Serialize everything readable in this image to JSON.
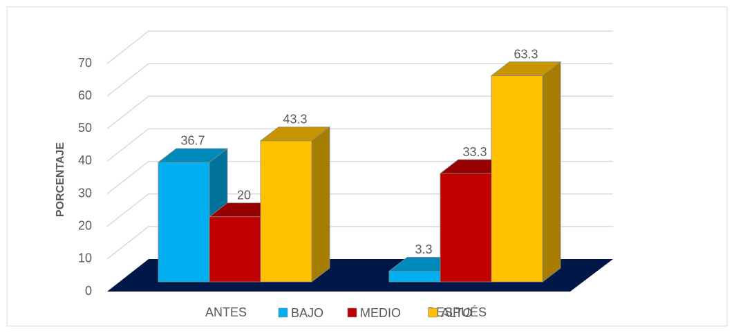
{
  "chart_data": {
    "type": "bar3d",
    "y_label": "PORCENTAJE",
    "categories": [
      "ANTES",
      "DESPUÉS"
    ],
    "series": [
      {
        "name": "BAJO",
        "color": "#00b0f0",
        "values": [
          36.7,
          3.3
        ]
      },
      {
        "name": "MEDIO",
        "color": "#c00000",
        "values": [
          20,
          33.3
        ]
      },
      {
        "name": "ALTO",
        "color": "#ffc000",
        "values": [
          43.3,
          63.3
        ]
      }
    ],
    "ylim": [
      0,
      70
    ],
    "yticks": [
      0,
      10,
      20,
      30,
      40,
      50,
      60,
      70
    ],
    "grid": true,
    "floor_color": "#001848",
    "legend": "bottom"
  }
}
